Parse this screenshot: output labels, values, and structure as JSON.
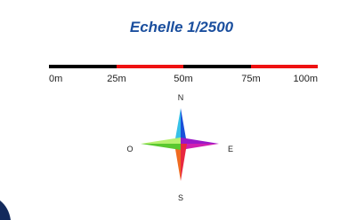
{
  "title": "Echelle 1/2500",
  "scale_bar": {
    "labels": [
      "0m",
      "25m",
      "50m",
      "75m",
      "100m"
    ]
  },
  "compass": {
    "north": "N",
    "east": "E",
    "south": "S",
    "west": "O"
  }
}
